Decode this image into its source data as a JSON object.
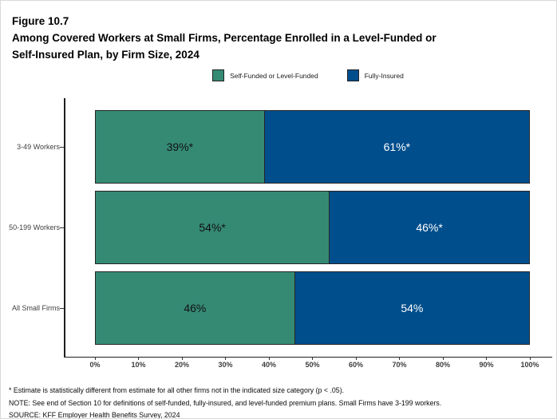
{
  "figure": {
    "label": "Figure 10.7",
    "title": "Among Covered Workers at Small Firms, Percentage Enrolled in a Level-Funded or\nSelf-Insured Plan, by Firm Size, 2024"
  },
  "legend": [
    {
      "label": "Self-Funded or Level-Funded",
      "color": "#358A74"
    },
    {
      "label": "Fully-Insured",
      "color": "#004E8C"
    }
  ],
  "chart_data": {
    "type": "bar",
    "orientation": "horizontal",
    "stacked": true,
    "grid": false,
    "legend_position": "top",
    "categories": [
      "3-49 Workers",
      "50-199 Workers",
      "All Small Firms"
    ],
    "series": [
      {
        "name": "Self-Funded or Level-Funded",
        "color": "#358A74",
        "label_color": "#111111",
        "values": [
          39,
          54,
          46
        ],
        "labels": [
          "39%*",
          "54%*",
          "46%"
        ]
      },
      {
        "name": "Fully-Insured",
        "color": "#004E8C",
        "label_color": "#ffffff",
        "values": [
          61,
          46,
          54
        ],
        "labels": [
          "61%*",
          "46%*",
          "54%"
        ]
      }
    ],
    "x_axis": {
      "min": 0,
      "max": 100,
      "ticks": [
        "0%",
        "10%",
        "20%",
        "30%",
        "40%",
        "50%",
        "60%",
        "70%",
        "80%",
        "90%",
        "100%"
      ]
    }
  },
  "footnotes": {
    "asterisk": "* Estimate is statistically different from estimate for all other firms not in the indicated size category (p < .05).",
    "note": "NOTE: See end of Section 10 for definitions of self-funded, fully-insured, and level-funded premium plans. Small Firms have 3-199 workers.",
    "source": "SOURCE: KFF Employer Health Benefits Survey, 2024"
  }
}
